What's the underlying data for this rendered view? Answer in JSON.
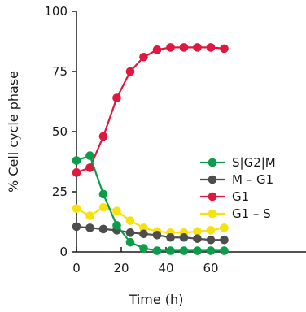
{
  "chart_data": {
    "type": "line",
    "title": "",
    "xlabel": "Time (h)",
    "ylabel": "% Cell cycle phase",
    "xlim": [
      0,
      66
    ],
    "ylim": [
      0,
      100
    ],
    "x_ticks": [
      "0",
      "20",
      "40",
      "60"
    ],
    "y_ticks": [
      "0",
      "25",
      "50",
      "75",
      "100"
    ],
    "grid": false,
    "legend_position": "right",
    "x": [
      0,
      6,
      12,
      18,
      24,
      30,
      36,
      42,
      48,
      54,
      60,
      66
    ],
    "series": [
      {
        "name": "S|G2|M",
        "color": "#0a9e4a",
        "values": [
          38,
          40,
          24,
          11,
          4,
          1.5,
          0.5,
          0.5,
          0.5,
          0.5,
          0.5,
          0.5
        ]
      },
      {
        "name": "M – G1",
        "color": "#4d4d4d",
        "values": [
          10.5,
          10,
          9.5,
          9,
          8,
          7.5,
          7,
          6,
          6,
          5.5,
          5,
          5
        ]
      },
      {
        "name": "G1",
        "color": "#e0173e",
        "values": [
          33,
          35,
          48,
          64,
          75,
          81,
          84,
          85,
          85,
          85,
          85,
          84.5
        ]
      },
      {
        "name": "G1 – S",
        "color": "#f7e20f",
        "values": [
          18,
          15,
          18.5,
          17,
          13,
          10,
          8.5,
          8,
          8,
          8.5,
          9,
          10
        ]
      }
    ]
  }
}
